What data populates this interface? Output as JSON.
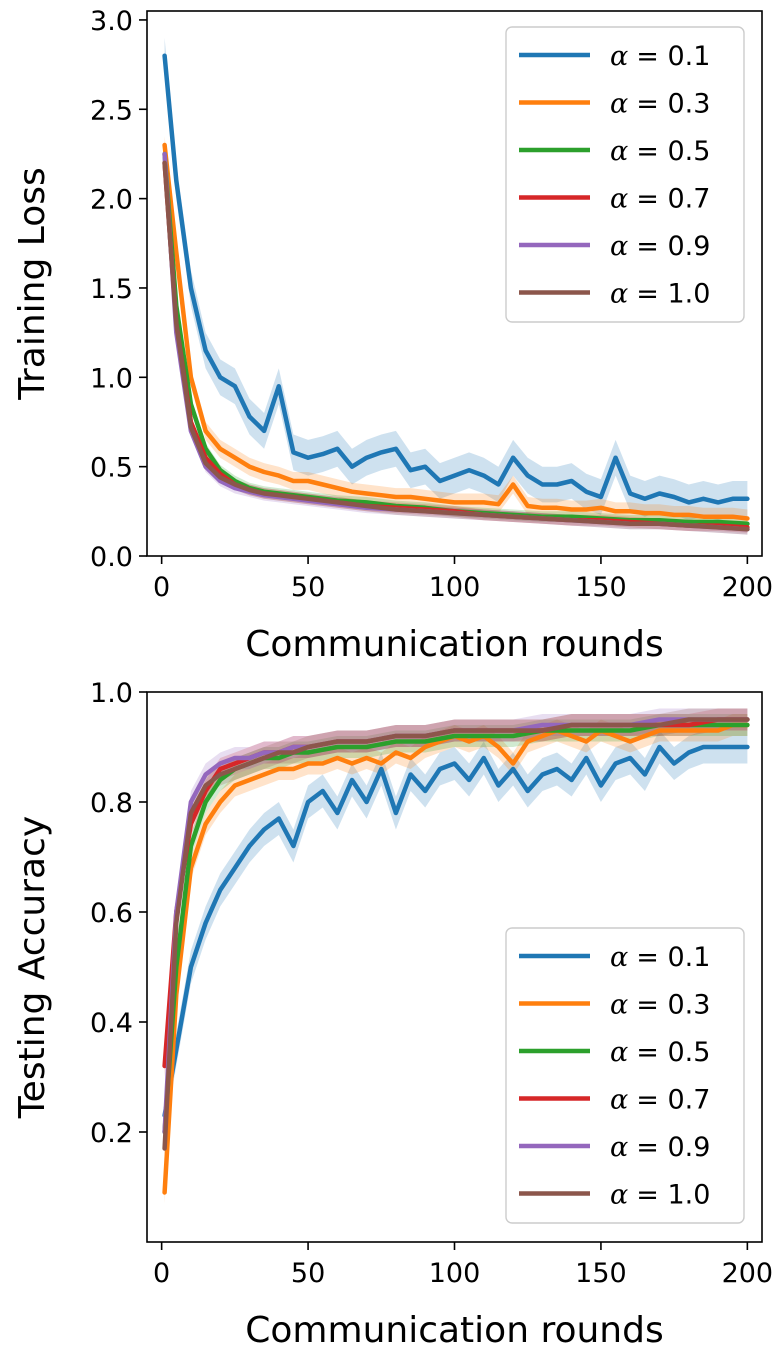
{
  "chart_data": [
    {
      "type": "line",
      "panel": "top",
      "title": "",
      "xlabel": "Communication rounds",
      "ylabel": "Training Loss",
      "xlim": [
        -5,
        205
      ],
      "ylim": [
        0.0,
        3.05
      ],
      "xticks": [
        0,
        50,
        100,
        150,
        200
      ],
      "xtick_labels": [
        "0",
        "50",
        "100",
        "150",
        "200"
      ],
      "yticks": [
        0.0,
        0.5,
        1.0,
        1.5,
        2.0,
        2.5,
        3.0
      ],
      "ytick_labels": [
        "0.0",
        "0.5",
        "1.0",
        "1.5",
        "2.0",
        "2.5",
        "3.0"
      ],
      "grid": false,
      "legend_position": "top-right",
      "series": [
        {
          "name": "α = 0.1",
          "label_symbol": "α",
          "label_value": "= 0.1",
          "color": "#1f77b4",
          "band": 0.1,
          "x": [
            1,
            5,
            10,
            15,
            20,
            25,
            30,
            35,
            40,
            45,
            50,
            55,
            60,
            65,
            70,
            75,
            80,
            85,
            90,
            95,
            100,
            105,
            110,
            115,
            120,
            125,
            130,
            135,
            140,
            145,
            150,
            155,
            160,
            165,
            170,
            175,
            180,
            185,
            190,
            195,
            200
          ],
          "y": [
            2.8,
            2.1,
            1.5,
            1.15,
            1.0,
            0.95,
            0.78,
            0.7,
            0.95,
            0.58,
            0.55,
            0.57,
            0.6,
            0.5,
            0.55,
            0.58,
            0.6,
            0.48,
            0.5,
            0.42,
            0.45,
            0.48,
            0.45,
            0.4,
            0.55,
            0.45,
            0.4,
            0.4,
            0.42,
            0.36,
            0.33,
            0.55,
            0.35,
            0.32,
            0.35,
            0.33,
            0.3,
            0.32,
            0.3,
            0.32,
            0.32
          ]
        },
        {
          "name": "α = 0.3",
          "label_symbol": "α",
          "label_value": "= 0.3",
          "color": "#ff7f0e",
          "band": 0.05,
          "x": [
            1,
            5,
            10,
            15,
            20,
            25,
            30,
            35,
            40,
            45,
            50,
            55,
            60,
            65,
            70,
            75,
            80,
            85,
            90,
            95,
            100,
            105,
            110,
            115,
            120,
            125,
            130,
            135,
            140,
            145,
            150,
            155,
            160,
            165,
            170,
            175,
            180,
            185,
            190,
            195,
            200
          ],
          "y": [
            2.3,
            1.7,
            1.0,
            0.7,
            0.6,
            0.55,
            0.5,
            0.47,
            0.45,
            0.42,
            0.42,
            0.4,
            0.38,
            0.36,
            0.35,
            0.34,
            0.33,
            0.33,
            0.32,
            0.31,
            0.3,
            0.3,
            0.3,
            0.29,
            0.4,
            0.28,
            0.27,
            0.27,
            0.26,
            0.26,
            0.27,
            0.25,
            0.25,
            0.24,
            0.24,
            0.23,
            0.23,
            0.22,
            0.22,
            0.22,
            0.21
          ]
        },
        {
          "name": "α = 0.5",
          "label_symbol": "α",
          "label_value": "= 0.5",
          "color": "#2ca02c",
          "band": 0.03,
          "x": [
            1,
            5,
            10,
            15,
            20,
            25,
            30,
            35,
            40,
            45,
            50,
            60,
            70,
            80,
            90,
            100,
            110,
            120,
            130,
            140,
            150,
            160,
            170,
            180,
            190,
            200
          ],
          "y": [
            2.25,
            1.4,
            0.85,
            0.6,
            0.48,
            0.42,
            0.38,
            0.36,
            0.35,
            0.34,
            0.33,
            0.31,
            0.3,
            0.28,
            0.27,
            0.25,
            0.24,
            0.23,
            0.22,
            0.22,
            0.21,
            0.2,
            0.2,
            0.19,
            0.19,
            0.18
          ]
        },
        {
          "name": "α = 0.7",
          "label_symbol": "α",
          "label_value": "= 0.7",
          "color": "#d62728",
          "band": 0.03,
          "x": [
            1,
            5,
            10,
            15,
            20,
            25,
            30,
            35,
            40,
            45,
            50,
            60,
            70,
            80,
            90,
            100,
            110,
            120,
            130,
            140,
            150,
            160,
            170,
            180,
            190,
            200
          ],
          "y": [
            2.2,
            1.3,
            0.75,
            0.55,
            0.46,
            0.4,
            0.37,
            0.35,
            0.34,
            0.33,
            0.32,
            0.3,
            0.28,
            0.27,
            0.26,
            0.25,
            0.23,
            0.22,
            0.21,
            0.2,
            0.2,
            0.19,
            0.18,
            0.17,
            0.17,
            0.16
          ]
        },
        {
          "name": "α = 0.9",
          "label_symbol": "α",
          "label_value": "= 0.9",
          "color": "#9467bd",
          "band": 0.03,
          "x": [
            1,
            5,
            10,
            15,
            20,
            25,
            30,
            35,
            40,
            45,
            50,
            60,
            70,
            80,
            90,
            100,
            110,
            120,
            130,
            140,
            150,
            160,
            170,
            180,
            190,
            200
          ],
          "y": [
            2.25,
            1.25,
            0.7,
            0.5,
            0.42,
            0.38,
            0.36,
            0.34,
            0.33,
            0.32,
            0.31,
            0.29,
            0.27,
            0.26,
            0.25,
            0.24,
            0.23,
            0.22,
            0.21,
            0.2,
            0.19,
            0.18,
            0.18,
            0.17,
            0.16,
            0.15
          ]
        },
        {
          "name": "α = 1.0",
          "label_symbol": "α",
          "label_value": "= 1.0",
          "color": "#8c564b",
          "band": 0.03,
          "x": [
            1,
            5,
            10,
            15,
            20,
            25,
            30,
            35,
            40,
            45,
            50,
            60,
            70,
            80,
            90,
            100,
            110,
            120,
            130,
            140,
            150,
            160,
            170,
            180,
            190,
            200
          ],
          "y": [
            2.2,
            1.3,
            0.72,
            0.52,
            0.44,
            0.4,
            0.37,
            0.35,
            0.34,
            0.33,
            0.32,
            0.3,
            0.28,
            0.26,
            0.25,
            0.24,
            0.23,
            0.22,
            0.21,
            0.2,
            0.19,
            0.18,
            0.18,
            0.17,
            0.16,
            0.15
          ]
        }
      ]
    },
    {
      "type": "line",
      "panel": "bottom",
      "title": "",
      "xlabel": "Communication rounds",
      "ylabel": "Testing Accuracy",
      "xlim": [
        -5,
        205
      ],
      "ylim": [
        0.0,
        1.0
      ],
      "xticks": [
        0,
        50,
        100,
        150,
        200
      ],
      "xtick_labels": [
        "0",
        "50",
        "100",
        "150",
        "200"
      ],
      "yticks": [
        0.2,
        0.4,
        0.6,
        0.8,
        1.0
      ],
      "ytick_labels": [
        "0.2",
        "0.4",
        "0.6",
        "0.8",
        "1.0"
      ],
      "grid": false,
      "legend_position": "bottom-right",
      "series": [
        {
          "name": "α = 0.1",
          "label_symbol": "α",
          "label_value": "= 0.1",
          "color": "#1f77b4",
          "band": 0.03,
          "x": [
            1,
            5,
            10,
            15,
            20,
            25,
            30,
            35,
            40,
            45,
            50,
            55,
            60,
            65,
            70,
            75,
            80,
            85,
            90,
            95,
            100,
            105,
            110,
            115,
            120,
            125,
            130,
            135,
            140,
            145,
            150,
            155,
            160,
            165,
            170,
            175,
            180,
            185,
            190,
            195,
            200
          ],
          "y": [
            0.23,
            0.35,
            0.5,
            0.58,
            0.64,
            0.68,
            0.72,
            0.75,
            0.77,
            0.72,
            0.8,
            0.82,
            0.78,
            0.84,
            0.8,
            0.86,
            0.78,
            0.85,
            0.82,
            0.86,
            0.87,
            0.84,
            0.88,
            0.83,
            0.86,
            0.82,
            0.85,
            0.86,
            0.84,
            0.88,
            0.83,
            0.87,
            0.88,
            0.85,
            0.9,
            0.87,
            0.89,
            0.9,
            0.9,
            0.9,
            0.9
          ]
        },
        {
          "name": "α = 0.3",
          "label_symbol": "α",
          "label_value": "= 0.3",
          "color": "#ff7f0e",
          "band": 0.02,
          "x": [
            1,
            5,
            10,
            15,
            20,
            25,
            30,
            35,
            40,
            45,
            50,
            55,
            60,
            65,
            70,
            75,
            80,
            85,
            90,
            95,
            100,
            105,
            110,
            115,
            120,
            125,
            130,
            135,
            140,
            145,
            150,
            155,
            160,
            165,
            170,
            175,
            180,
            185,
            190,
            195,
            200
          ],
          "y": [
            0.09,
            0.45,
            0.68,
            0.76,
            0.8,
            0.83,
            0.84,
            0.85,
            0.86,
            0.86,
            0.87,
            0.87,
            0.88,
            0.87,
            0.88,
            0.87,
            0.89,
            0.88,
            0.9,
            0.91,
            0.92,
            0.91,
            0.92,
            0.9,
            0.87,
            0.91,
            0.92,
            0.93,
            0.92,
            0.91,
            0.93,
            0.92,
            0.91,
            0.92,
            0.93,
            0.93,
            0.93,
            0.93,
            0.93,
            0.94,
            0.94
          ]
        },
        {
          "name": "α = 0.5",
          "label_symbol": "α",
          "label_value": "= 0.5",
          "color": "#2ca02c",
          "band": 0.02,
          "x": [
            1,
            5,
            10,
            15,
            20,
            25,
            30,
            35,
            40,
            45,
            50,
            60,
            70,
            80,
            90,
            100,
            110,
            120,
            130,
            140,
            150,
            160,
            170,
            180,
            190,
            200
          ],
          "y": [
            0.2,
            0.5,
            0.72,
            0.8,
            0.84,
            0.86,
            0.87,
            0.88,
            0.88,
            0.89,
            0.89,
            0.9,
            0.9,
            0.91,
            0.91,
            0.92,
            0.92,
            0.92,
            0.93,
            0.93,
            0.93,
            0.93,
            0.94,
            0.94,
            0.94,
            0.94
          ]
        },
        {
          "name": "α = 0.7",
          "label_symbol": "α",
          "label_value": "= 0.7",
          "color": "#d62728",
          "band": 0.02,
          "x": [
            1,
            5,
            10,
            15,
            20,
            25,
            30,
            35,
            40,
            45,
            50,
            60,
            70,
            80,
            90,
            100,
            110,
            120,
            130,
            140,
            150,
            160,
            170,
            180,
            190,
            200
          ],
          "y": [
            0.32,
            0.6,
            0.76,
            0.82,
            0.86,
            0.87,
            0.88,
            0.89,
            0.89,
            0.9,
            0.9,
            0.91,
            0.91,
            0.92,
            0.92,
            0.93,
            0.93,
            0.93,
            0.93,
            0.94,
            0.94,
            0.94,
            0.94,
            0.94,
            0.95,
            0.95
          ]
        },
        {
          "name": "α = 0.9",
          "label_symbol": "α",
          "label_value": "= 0.9",
          "color": "#9467bd",
          "band": 0.02,
          "x": [
            1,
            5,
            10,
            15,
            20,
            25,
            30,
            35,
            40,
            45,
            50,
            60,
            70,
            80,
            90,
            100,
            110,
            120,
            130,
            140,
            150,
            160,
            170,
            180,
            190,
            200
          ],
          "y": [
            0.2,
            0.6,
            0.8,
            0.85,
            0.87,
            0.88,
            0.88,
            0.89,
            0.89,
            0.9,
            0.9,
            0.91,
            0.91,
            0.92,
            0.92,
            0.93,
            0.93,
            0.93,
            0.94,
            0.94,
            0.94,
            0.94,
            0.95,
            0.95,
            0.95,
            0.95
          ]
        },
        {
          "name": "α = 1.0",
          "label_symbol": "α",
          "label_value": "= 1.0",
          "color": "#8c564b",
          "band": 0.02,
          "x": [
            1,
            5,
            10,
            15,
            20,
            25,
            30,
            35,
            40,
            45,
            50,
            60,
            70,
            80,
            90,
            100,
            110,
            120,
            130,
            140,
            150,
            160,
            170,
            180,
            190,
            200
          ],
          "y": [
            0.17,
            0.58,
            0.78,
            0.83,
            0.85,
            0.86,
            0.87,
            0.88,
            0.89,
            0.89,
            0.9,
            0.91,
            0.91,
            0.92,
            0.92,
            0.93,
            0.93,
            0.93,
            0.93,
            0.94,
            0.94,
            0.94,
            0.94,
            0.95,
            0.95,
            0.95
          ]
        }
      ]
    }
  ]
}
